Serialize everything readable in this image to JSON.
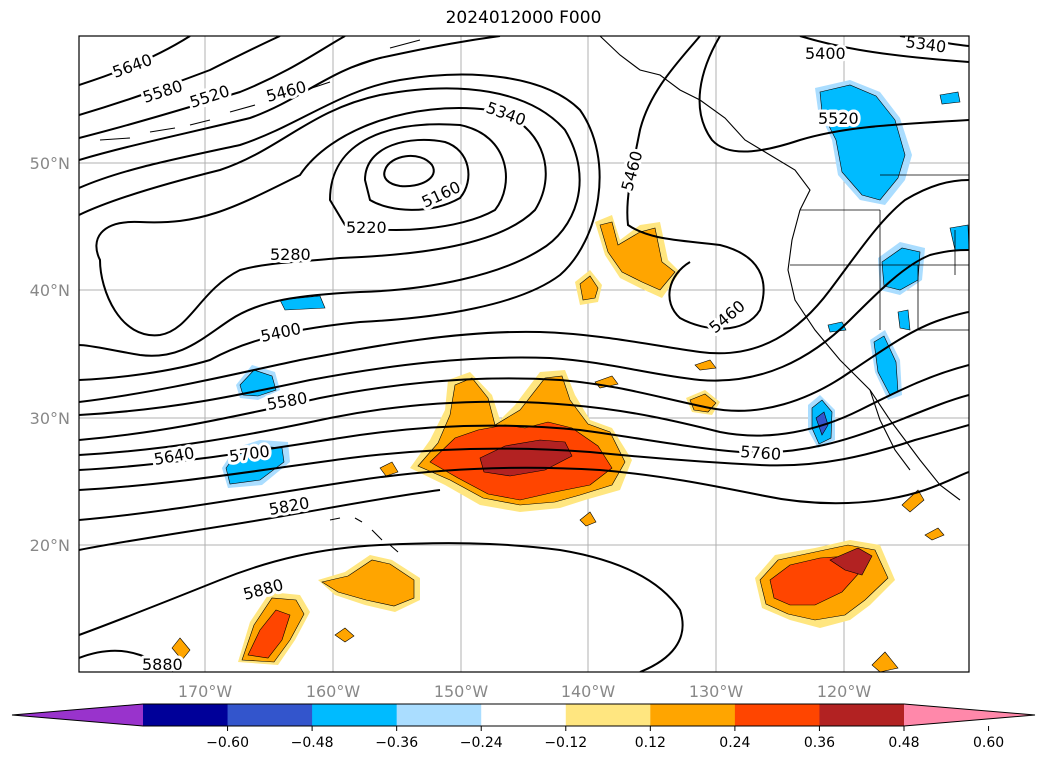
{
  "title": "2024012000 F000",
  "lat_labels": [
    "50°N",
    "40°N",
    "30°N",
    "20°N"
  ],
  "lon_labels": [
    "170°W",
    "160°W",
    "150°W",
    "140°W",
    "130°W",
    "120°W"
  ],
  "contour_labels": [
    "5640",
    "5580",
    "5520",
    "5460",
    "5340",
    "5400",
    "5340",
    "5520",
    "5460",
    "5160",
    "5220",
    "5280",
    "5400",
    "5460",
    "5580",
    "5640",
    "5700",
    "5760",
    "5820",
    "5880",
    "5880"
  ],
  "colorbar": {
    "colors": [
      "#9933cc",
      "#000099",
      "#3355cc",
      "#00bbff",
      "#aaddff",
      "#ffffff",
      "#ffe680",
      "#ffa500",
      "#ff4500",
      "#b22222",
      "#ff88aa"
    ],
    "tick_labels": [
      "−0.60",
      "−0.48",
      "−0.36",
      "−0.24",
      "−0.12",
      "0.12",
      "0.24",
      "0.36",
      "0.48",
      "0.60"
    ]
  }
}
